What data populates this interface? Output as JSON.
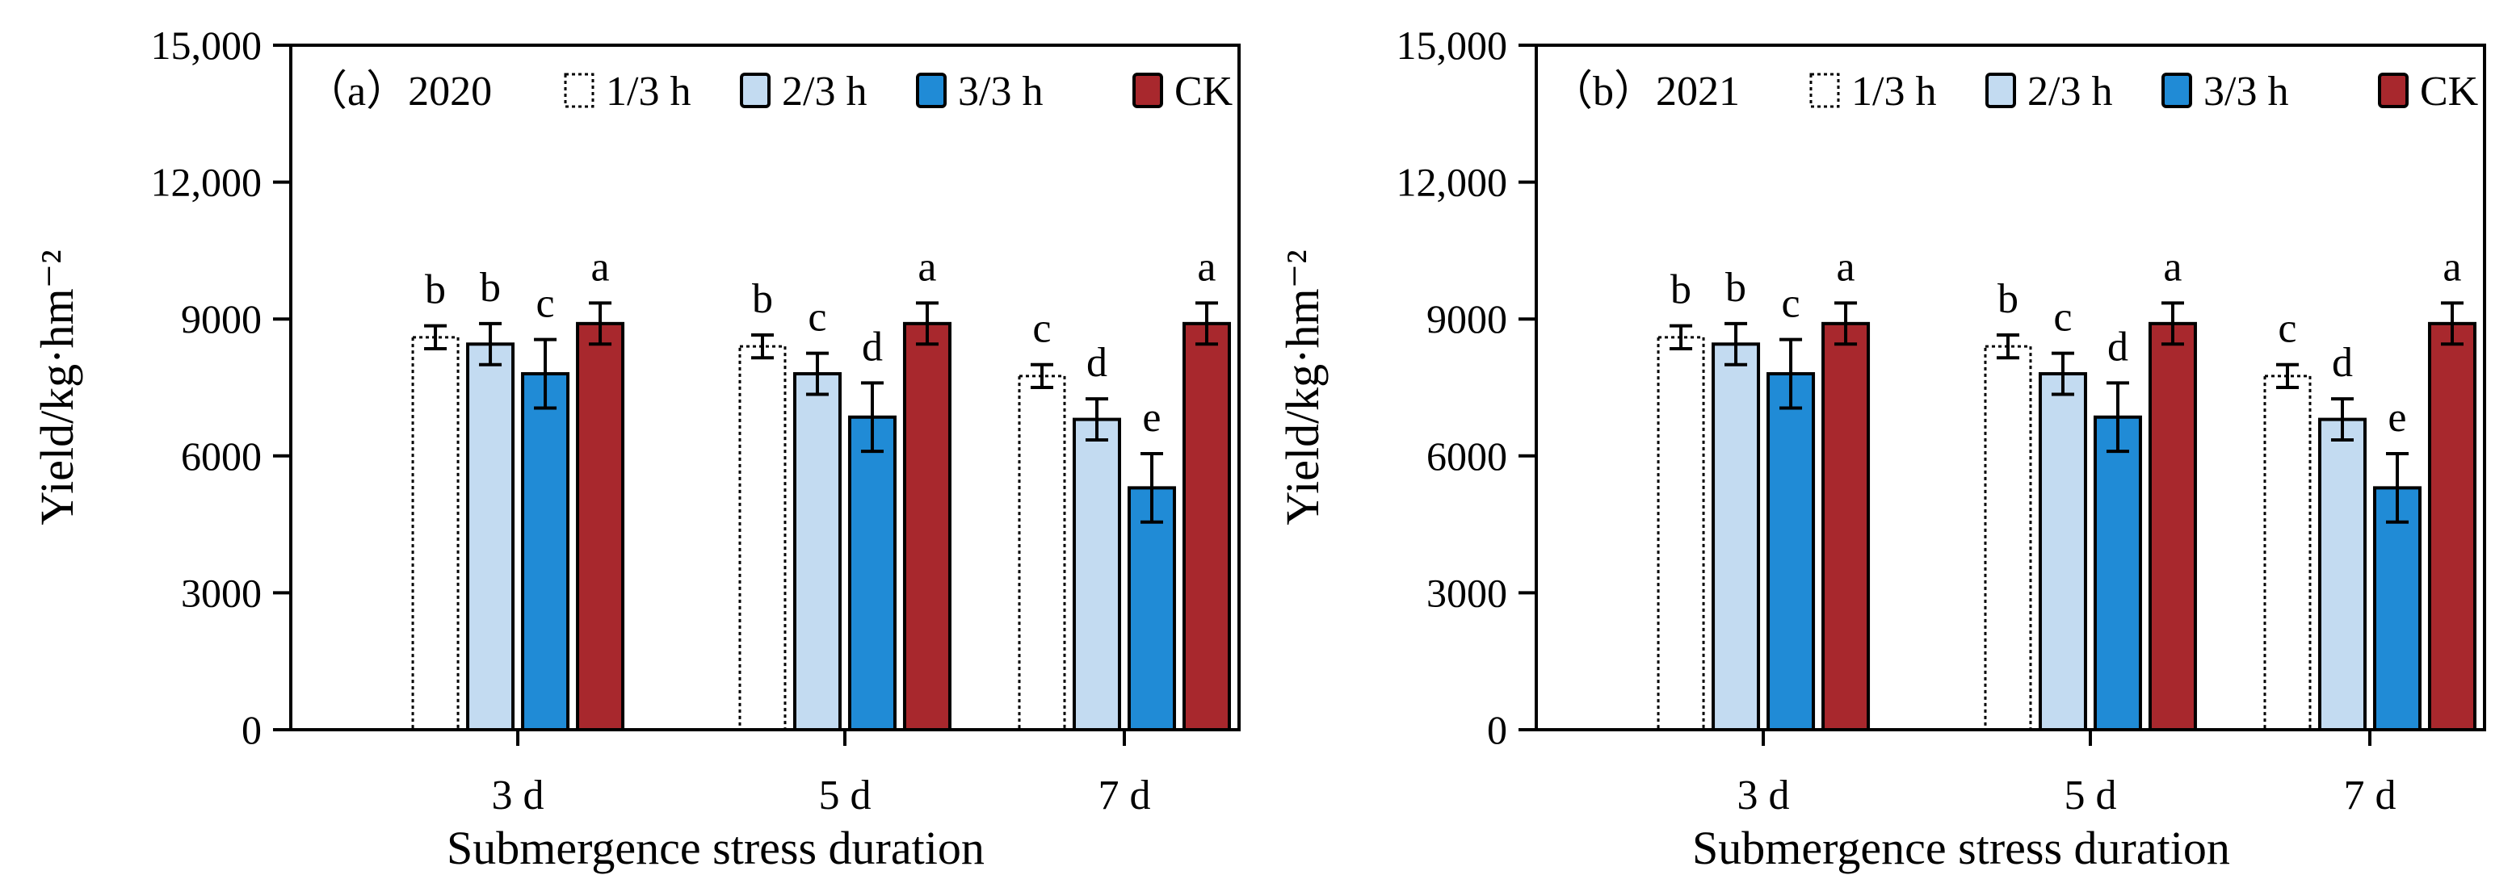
{
  "chart_data": [
    {
      "type": "bar",
      "panel_label": "（a）",
      "title": "2020",
      "xlabel": "Submergence stress duration",
      "ylabel": "Yield/kg·hm⁻²",
      "ylim": [
        0,
        15000
      ],
      "yticks": [
        0,
        3000,
        6000,
        9000,
        12000,
        15000
      ],
      "ytick_labels": [
        "0",
        "3000",
        "6000",
        "9000",
        "12,000",
        "15,000"
      ],
      "categories": [
        "3 d",
        "5 d",
        "7 d"
      ],
      "series": [
        {
          "name": "1/3 h",
          "values": [
            8600,
            8400,
            7750
          ],
          "errors": [
            250,
            250,
            250
          ],
          "letters": [
            "b",
            "b",
            "c"
          ]
        },
        {
          "name": "2/3 h",
          "values": [
            8450,
            7800,
            6800
          ],
          "errors": [
            450,
            450,
            450
          ],
          "letters": [
            "b",
            "c",
            "d"
          ]
        },
        {
          "name": "3/3 h",
          "values": [
            7800,
            6850,
            5300
          ],
          "errors": [
            750,
            750,
            750
          ],
          "letters": [
            "c",
            "d",
            "e"
          ]
        },
        {
          "name": "CK",
          "values": [
            8900,
            8900,
            8900
          ],
          "errors": [
            450,
            450,
            450
          ],
          "letters": [
            "a",
            "a",
            "a"
          ]
        }
      ]
    },
    {
      "type": "bar",
      "panel_label": "（b）",
      "title": "2021",
      "xlabel": "Submergence stress duration",
      "ylabel": "Yield/kg·hm⁻²",
      "ylim": [
        0,
        15000
      ],
      "yticks": [
        0,
        3000,
        6000,
        9000,
        12000,
        15000
      ],
      "ytick_labels": [
        "0",
        "3000",
        "6000",
        "9000",
        "12,000",
        "15,000"
      ],
      "categories": [
        "3 d",
        "5 d",
        "7 d"
      ],
      "series": [
        {
          "name": "1/3 h",
          "values": [
            8600,
            8400,
            7750
          ],
          "errors": [
            250,
            250,
            250
          ],
          "letters": [
            "b",
            "b",
            "c"
          ]
        },
        {
          "name": "2/3 h",
          "values": [
            8450,
            7800,
            6800
          ],
          "errors": [
            450,
            450,
            450
          ],
          "letters": [
            "b",
            "c",
            "d"
          ]
        },
        {
          "name": "3/3 h",
          "values": [
            7800,
            6850,
            5300
          ],
          "errors": [
            750,
            750,
            750
          ],
          "letters": [
            "c",
            "d",
            "e"
          ]
        },
        {
          "name": "CK",
          "values": [
            8900,
            8900,
            8900
          ],
          "errors": [
            450,
            450,
            450
          ],
          "letters": [
            "a",
            "a",
            "a"
          ]
        }
      ]
    }
  ],
  "colors": {
    "1/3 h": "#ffffff",
    "2/3 h": "#c3dbf1",
    "3/3 h": "#208bd6",
    "CK": "#a8282d"
  }
}
